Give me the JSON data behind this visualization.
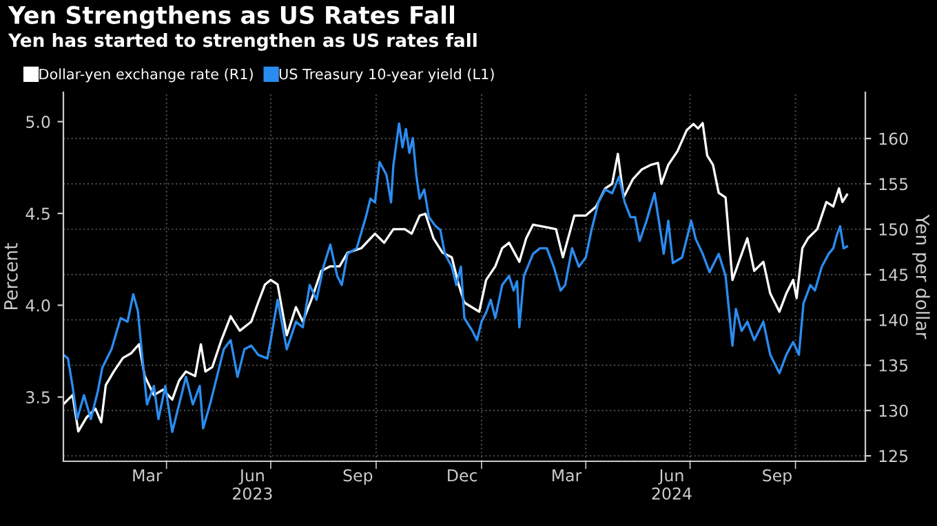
{
  "chart_data": {
    "type": "line",
    "title": "Yen Strengthens as US Rates Fall",
    "subtitle": "Yen has started to strengthen as US rates fall",
    "ylabel": "Percent",
    "y2label": "Yen per dollar",
    "xlim": [
      "2023-01-01",
      "2024-12-01"
    ],
    "xticks": [
      {
        "value": "2023-03-15",
        "label": "Mar"
      },
      {
        "value": "2023-06-15",
        "label": "Jun\n2023"
      },
      {
        "value": "2023-09-15",
        "label": "Sep"
      },
      {
        "value": "2023-12-15",
        "label": "Dec"
      },
      {
        "value": "2024-03-15",
        "label": "Mar"
      },
      {
        "value": "2024-06-15",
        "label": "Jun\n2024"
      },
      {
        "value": "2024-09-15",
        "label": "Sep"
      },
      {
        "value": "2023-04-01",
        "label": null
      },
      {
        "value": "2023-07-01",
        "label": null
      },
      {
        "value": "2023-10-01",
        "label": null
      },
      {
        "value": "2024-01-01",
        "label": null
      },
      {
        "value": "2024-04-01",
        "label": null
      },
      {
        "value": "2024-07-01",
        "label": null
      },
      {
        "value": "2024-10-01",
        "label": null
      }
    ],
    "ylim": [
      3.15,
      5.16
    ],
    "yticks": [
      {
        "value": 3.5,
        "label": "3.5"
      },
      {
        "value": 4.0,
        "label": "4.0"
      },
      {
        "value": 4.5,
        "label": "4.5"
      },
      {
        "value": 5.0,
        "label": "5.0"
      }
    ],
    "y2lim": [
      124.4,
      165.1
    ],
    "y2ticks": [
      125,
      130,
      135,
      140,
      145,
      150,
      155,
      160
    ],
    "grid": true,
    "legend": "top left",
    "series": [
      {
        "name": "Dollar-yen exchange rate (R1)",
        "color": "#ffffff",
        "axis": "y2",
        "x": [
          "2023-01-01",
          "2023-01-09",
          "2023-01-14",
          "2023-01-21",
          "2023-01-29",
          "2023-02-03",
          "2023-02-07",
          "2023-02-14",
          "2023-02-22",
          "2023-03-01",
          "2023-03-08",
          "2023-03-13",
          "2023-03-21",
          "2023-03-29",
          "2023-04-06",
          "2023-04-12",
          "2023-04-18",
          "2023-04-26",
          "2023-05-01",
          "2023-05-05",
          "2023-05-11",
          "2023-05-19",
          "2023-05-27",
          "2023-06-04",
          "2023-06-14",
          "2023-06-20",
          "2023-06-26",
          "2023-07-01",
          "2023-07-07",
          "2023-07-15",
          "2023-07-23",
          "2023-07-29",
          "2023-08-06",
          "2023-08-14",
          "2023-08-22",
          "2023-08-30",
          "2023-09-06",
          "2023-09-18",
          "2023-09-30",
          "2023-10-08",
          "2023-10-16",
          "2023-10-26",
          "2023-11-01",
          "2023-11-08",
          "2023-11-13",
          "2023-11-20",
          "2023-11-28",
          "2023-12-06",
          "2023-12-12",
          "2023-12-17",
          "2023-12-30",
          "2024-01-05",
          "2024-01-13",
          "2024-01-19",
          "2024-01-25",
          "2024-02-03",
          "2024-02-09",
          "2024-02-15",
          "2024-02-27",
          "2024-03-06",
          "2024-03-12",
          "2024-03-22",
          "2024-04-01",
          "2024-04-10",
          "2024-04-18",
          "2024-04-24",
          "2024-04-29",
          "2024-05-04",
          "2024-05-12",
          "2024-05-20",
          "2024-05-28",
          "2024-06-03",
          "2024-06-06",
          "2024-06-12",
          "2024-06-20",
          "2024-06-28",
          "2024-07-04",
          "2024-07-08",
          "2024-07-12",
          "2024-07-16",
          "2024-07-21",
          "2024-07-26",
          "2024-08-01",
          "2024-08-07",
          "2024-08-14",
          "2024-08-20",
          "2024-08-26",
          "2024-09-03",
          "2024-09-09",
          "2024-09-17",
          "2024-09-23",
          "2024-09-29",
          "2024-10-02",
          "2024-10-07",
          "2024-10-12",
          "2024-10-20",
          "2024-10-28",
          "2024-11-03",
          "2024-11-08",
          "2024-11-11",
          "2024-11-15"
        ],
        "values": [
          130.7,
          131.7,
          127.7,
          129.2,
          130.2,
          128.7,
          132.8,
          134.3,
          135.8,
          136.3,
          137.3,
          133.8,
          131.7,
          132.3,
          131.2,
          133.3,
          134.3,
          133.8,
          137.3,
          134.3,
          134.8,
          137.8,
          140.4,
          138.8,
          139.8,
          141.9,
          143.9,
          144.4,
          143.9,
          138.3,
          141.4,
          139.8,
          142.4,
          145.4,
          145.9,
          145.9,
          147.4,
          147.9,
          149.5,
          148.5,
          150.0,
          150.0,
          149.5,
          151.5,
          151.7,
          149.0,
          147.4,
          146.9,
          143.9,
          141.9,
          140.9,
          144.4,
          145.9,
          147.9,
          148.5,
          146.4,
          149.0,
          150.5,
          150.2,
          150.0,
          146.9,
          151.5,
          151.5,
          152.5,
          154.5,
          155.0,
          158.3,
          153.5,
          155.5,
          156.6,
          157.1,
          157.3,
          155.0,
          157.1,
          158.6,
          160.9,
          161.6,
          161.1,
          161.7,
          158.1,
          157.1,
          154.0,
          153.5,
          144.4,
          146.9,
          149.0,
          145.4,
          146.4,
          142.9,
          140.9,
          142.9,
          144.4,
          142.4,
          147.9,
          149.0,
          150.0,
          153.0,
          152.5,
          154.5,
          153.0,
          153.8
        ]
      },
      {
        "name": "US Treasury 10-year yield (L1)",
        "color": "#2b8cf0",
        "x": [
          "2023-01-01",
          "2023-01-05",
          "2023-01-09",
          "2023-01-13",
          "2023-01-19",
          "2023-01-25",
          "2023-01-31",
          "2023-02-04",
          "2023-02-12",
          "2023-02-20",
          "2023-02-26",
          "2023-03-03",
          "2023-03-07",
          "2023-03-11",
          "2023-03-15",
          "2023-03-21",
          "2023-03-25",
          "2023-03-31",
          "2023-04-06",
          "2023-04-12",
          "2023-04-18",
          "2023-04-24",
          "2023-04-30",
          "2023-05-03",
          "2023-05-09",
          "2023-05-15",
          "2023-05-21",
          "2023-05-27",
          "2023-06-02",
          "2023-06-08",
          "2023-06-14",
          "2023-06-20",
          "2023-06-28",
          "2023-07-01",
          "2023-07-07",
          "2023-07-15",
          "2023-07-23",
          "2023-07-29",
          "2023-08-04",
          "2023-08-10",
          "2023-08-16",
          "2023-08-22",
          "2023-08-28",
          "2023-09-01",
          "2023-09-06",
          "2023-09-14",
          "2023-09-22",
          "2023-09-26",
          "2023-09-30",
          "2023-10-04",
          "2023-10-10",
          "2023-10-14",
          "2023-10-16",
          "2023-10-21",
          "2023-10-24",
          "2023-10-27",
          "2023-10-30",
          "2023-11-02",
          "2023-11-05",
          "2023-11-08",
          "2023-11-12",
          "2023-11-16",
          "2023-11-22",
          "2023-11-26",
          "2023-11-30",
          "2023-12-06",
          "2023-12-10",
          "2023-12-14",
          "2023-12-17",
          "2023-12-24",
          "2023-12-28",
          "2024-01-01",
          "2024-01-05",
          "2024-01-09",
          "2024-01-13",
          "2024-01-19",
          "2024-01-25",
          "2024-01-29",
          "2024-02-01",
          "2024-02-03",
          "2024-02-07",
          "2024-02-15",
          "2024-02-21",
          "2024-02-27",
          "2024-03-04",
          "2024-03-10",
          "2024-03-14",
          "2024-03-20",
          "2024-03-26",
          "2024-04-01",
          "2024-04-06",
          "2024-04-12",
          "2024-04-18",
          "2024-04-24",
          "2024-04-30",
          "2024-05-05",
          "2024-05-10",
          "2024-05-14",
          "2024-05-18",
          "2024-05-24",
          "2024-05-31",
          "2024-06-05",
          "2024-06-08",
          "2024-06-12",
          "2024-06-16",
          "2024-06-24",
          "2024-07-02",
          "2024-07-06",
          "2024-07-12",
          "2024-07-18",
          "2024-07-26",
          "2024-08-01",
          "2024-08-07",
          "2024-08-10",
          "2024-08-15",
          "2024-08-20",
          "2024-08-26",
          "2024-09-03",
          "2024-09-09",
          "2024-09-17",
          "2024-09-23",
          "2024-09-29",
          "2024-10-04",
          "2024-10-08",
          "2024-10-14",
          "2024-10-18",
          "2024-10-24",
          "2024-10-30",
          "2024-11-03",
          "2024-11-06",
          "2024-11-09",
          "2024-11-12",
          "2024-11-15"
        ],
        "values": [
          3.73,
          3.71,
          3.56,
          3.38,
          3.51,
          3.38,
          3.53,
          3.66,
          3.76,
          3.93,
          3.91,
          4.06,
          3.97,
          3.71,
          3.46,
          3.56,
          3.38,
          3.56,
          3.31,
          3.46,
          3.61,
          3.46,
          3.56,
          3.33,
          3.46,
          3.61,
          3.76,
          3.81,
          3.61,
          3.76,
          3.78,
          3.73,
          3.71,
          3.81,
          4.03,
          3.76,
          3.91,
          3.88,
          4.11,
          4.03,
          4.21,
          4.33,
          4.16,
          4.11,
          4.28,
          4.31,
          4.48,
          4.58,
          4.56,
          4.78,
          4.71,
          4.56,
          4.76,
          4.99,
          4.86,
          4.96,
          4.83,
          4.91,
          4.71,
          4.58,
          4.63,
          4.48,
          4.43,
          4.41,
          4.28,
          4.21,
          4.11,
          4.21,
          3.93,
          3.86,
          3.81,
          3.91,
          3.96,
          4.03,
          3.93,
          4.11,
          4.16,
          4.08,
          4.13,
          3.88,
          4.16,
          4.28,
          4.31,
          4.31,
          4.21,
          4.08,
          4.11,
          4.31,
          4.21,
          4.26,
          4.41,
          4.56,
          4.63,
          4.61,
          4.7,
          4.56,
          4.48,
          4.48,
          4.35,
          4.46,
          4.61,
          4.41,
          4.28,
          4.46,
          4.23,
          4.26,
          4.46,
          4.36,
          4.28,
          4.18,
          4.28,
          4.16,
          3.78,
          3.98,
          3.86,
          3.91,
          3.81,
          3.91,
          3.73,
          3.63,
          3.73,
          3.8,
          3.73,
          4.01,
          4.11,
          4.08,
          4.21,
          4.28,
          4.31,
          4.38,
          4.43,
          4.31,
          4.32
        ]
      }
    ]
  }
}
